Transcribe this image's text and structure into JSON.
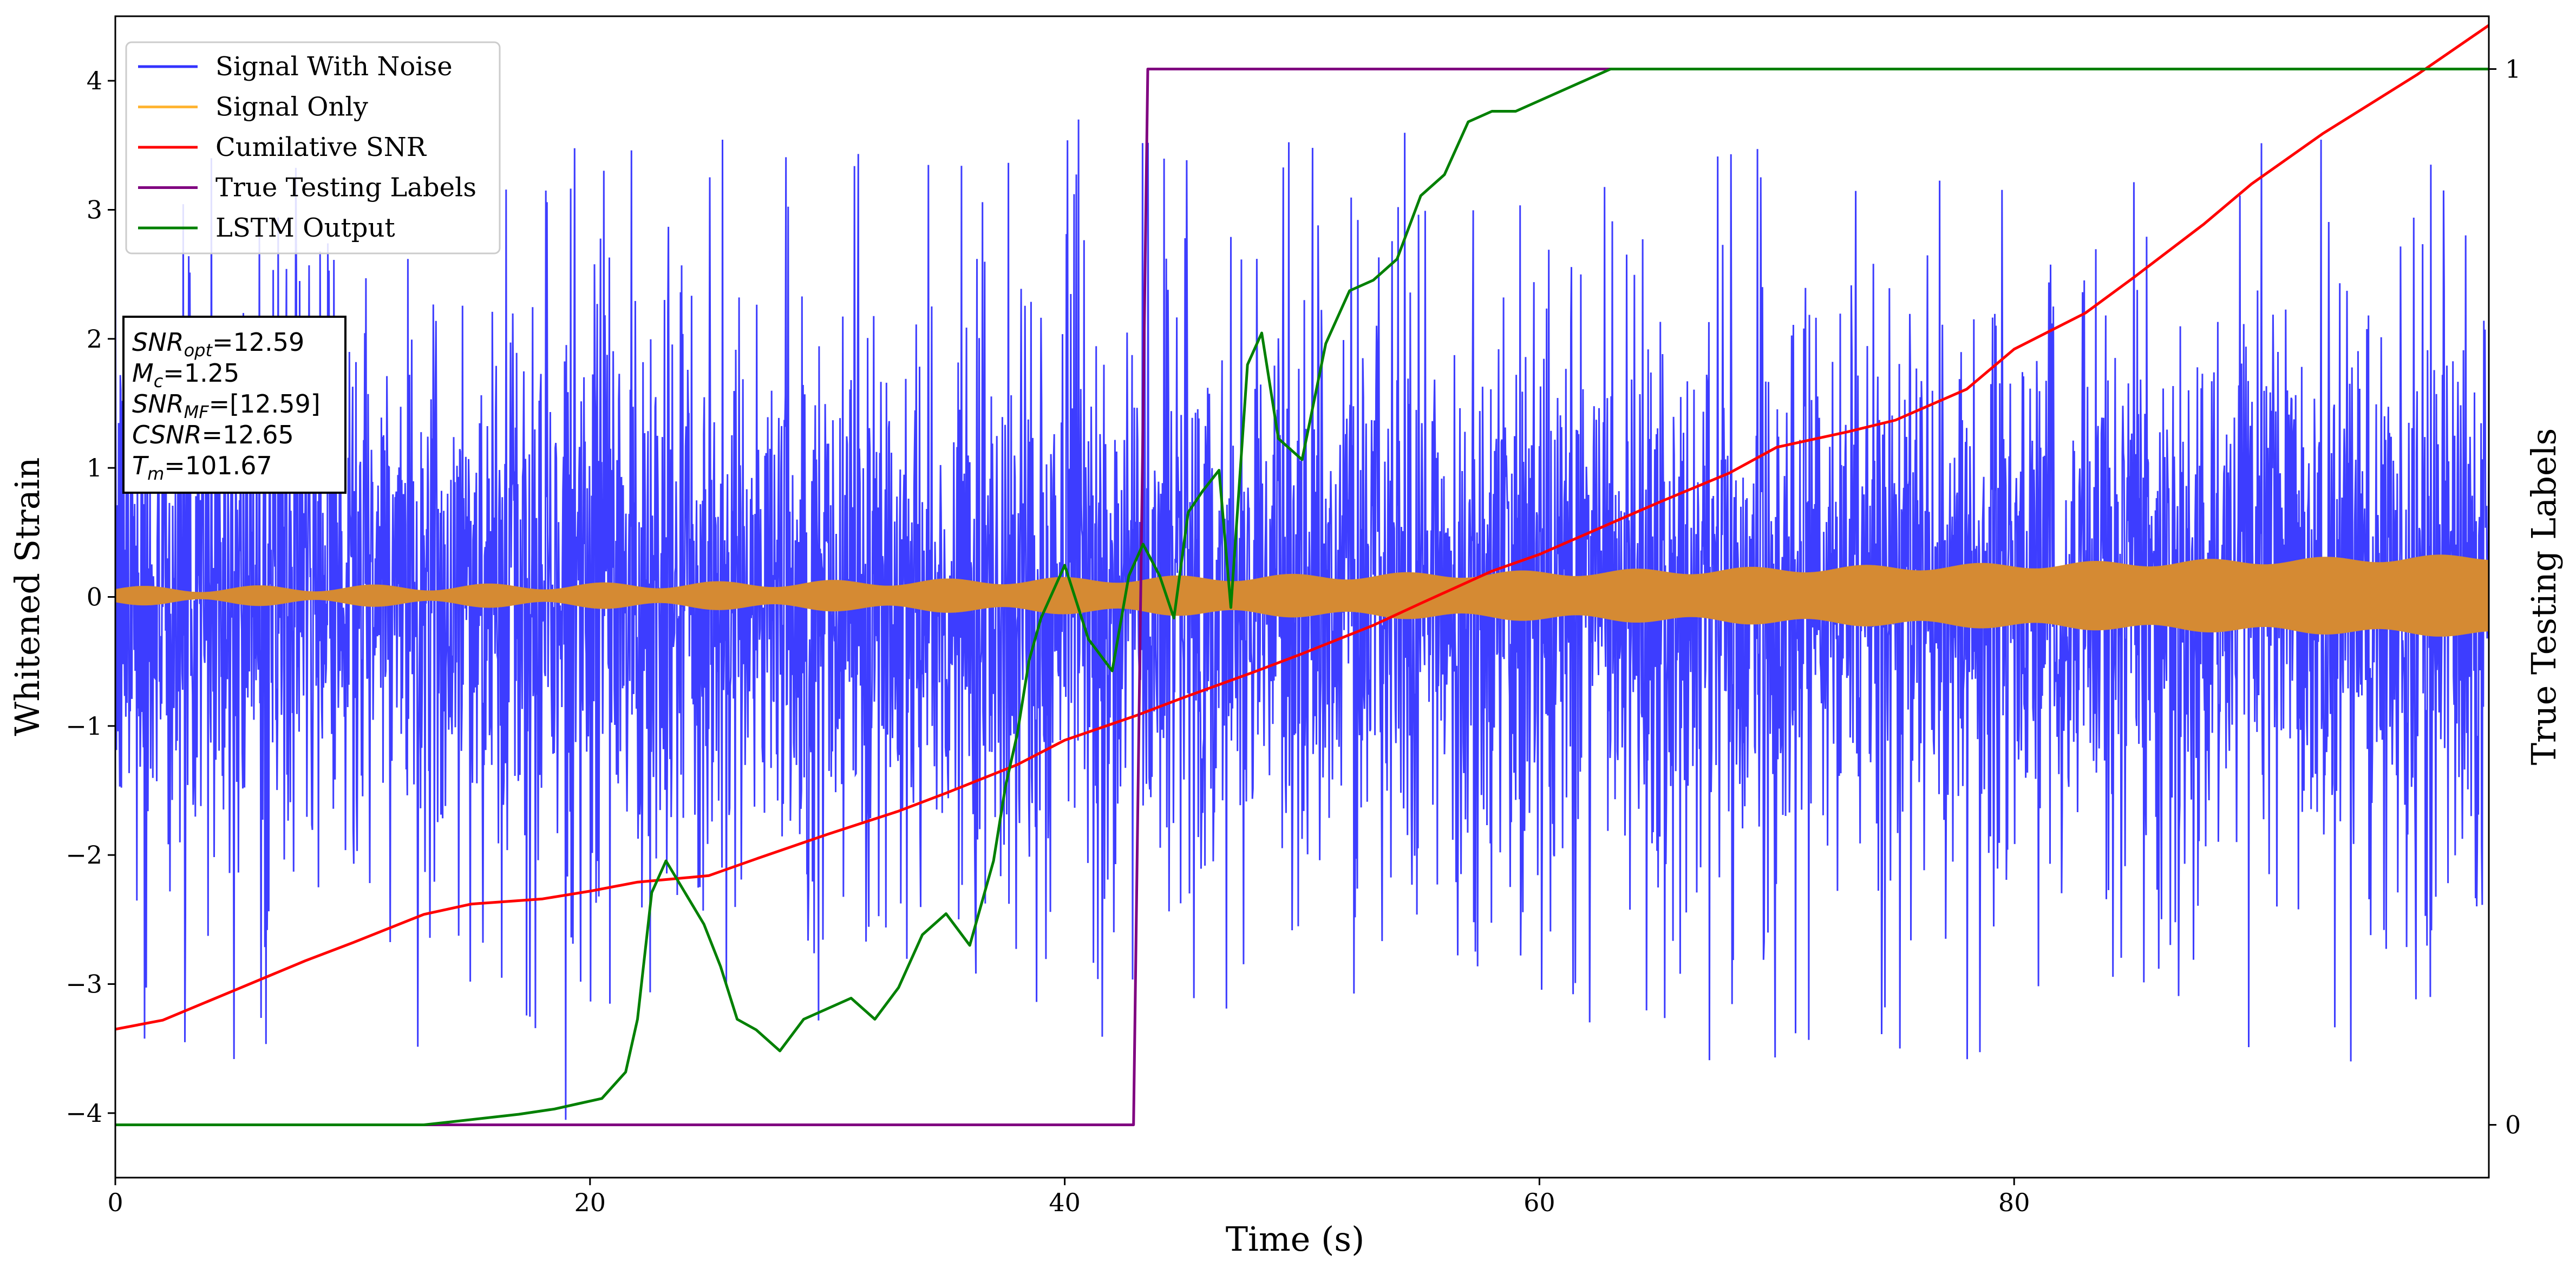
{
  "chart_data": {
    "type": "line",
    "xlabel": "Time (s)",
    "ylabel": "Whitened Strain",
    "ylabel_right": "True Testing Labels",
    "xlim": [
      0,
      100
    ],
    "ylim": [
      -4.5,
      4.5
    ],
    "ylim_right": [
      -0.05,
      1.05
    ],
    "x_ticks": [
      0,
      20,
      40,
      60,
      80
    ],
    "y_ticks": [
      -4,
      -3,
      -2,
      -1,
      0,
      1,
      2,
      3,
      4
    ],
    "y_ticks_right": [
      0,
      1
    ],
    "grid": false,
    "legend_position": "upper-left",
    "series": [
      {
        "name": "Signal With Noise",
        "color": "#3333ff",
        "axis": "left",
        "kind": "noise",
        "amplitude_typical": 1.3,
        "amplitude_max": 3.7
      },
      {
        "name": "Signal Only",
        "color": "#ffb533",
        "axis": "left",
        "kind": "chirp",
        "amplitude_start": 0.05,
        "amplitude_end": 0.3
      },
      {
        "name": "Cumilative SNR",
        "color": "#ff0000",
        "axis": "left",
        "x": [
          0,
          2,
          5,
          8,
          10,
          13,
          15,
          18,
          20,
          22,
          25,
          27,
          30,
          33,
          35,
          38,
          40,
          43,
          45,
          48,
          50,
          53,
          55,
          58,
          60,
          63,
          65,
          68,
          70,
          73,
          75,
          78,
          80,
          83,
          85,
          88,
          90,
          93,
          95,
          97,
          100
        ],
        "y": [
          -3.35,
          -3.28,
          -3.05,
          -2.82,
          -2.68,
          -2.46,
          -2.38,
          -2.34,
          -2.28,
          -2.21,
          -2.16,
          -2.03,
          -1.84,
          -1.66,
          -1.52,
          -1.3,
          -1.11,
          -0.92,
          -0.78,
          -0.58,
          -0.44,
          -0.22,
          -0.05,
          0.2,
          0.33,
          0.57,
          0.73,
          0.96,
          1.16,
          1.28,
          1.37,
          1.61,
          1.92,
          2.2,
          2.47,
          2.89,
          3.2,
          3.59,
          3.82,
          4.05,
          4.43
        ]
      },
      {
        "name": "True Testing Labels",
        "color": "#800080",
        "axis": "right",
        "x": [
          0,
          42.9,
          43.5,
          100
        ],
        "y": [
          0,
          0,
          1,
          1
        ]
      },
      {
        "name": "LSTM Output",
        "color": "#008000",
        "axis": "right",
        "x": [
          0,
          13,
          15,
          17,
          18.5,
          19.5,
          20.5,
          21.5,
          22,
          22.6,
          23.2,
          24,
          24.8,
          25.5,
          26.2,
          27,
          28,
          29,
          30,
          31,
          32,
          33,
          34,
          35,
          36,
          37,
          37.5,
          38,
          38.5,
          39,
          40,
          41,
          42,
          42.7,
          43.3,
          44,
          44.6,
          45.2,
          45.8,
          46.5,
          47,
          47.7,
          48.3,
          49,
          50,
          51,
          52,
          53,
          54,
          55,
          56,
          57,
          58,
          59,
          60,
          61,
          62,
          63,
          65,
          67,
          70,
          100
        ],
        "y": [
          0,
          0,
          0.005,
          0.01,
          0.015,
          0.02,
          0.025,
          0.05,
          0.1,
          0.22,
          0.25,
          0.22,
          0.19,
          0.15,
          0.1,
          0.09,
          0.07,
          0.1,
          0.11,
          0.12,
          0.1,
          0.13,
          0.18,
          0.2,
          0.17,
          0.25,
          0.32,
          0.37,
          0.44,
          0.48,
          0.53,
          0.46,
          0.43,
          0.52,
          0.55,
          0.52,
          0.48,
          0.58,
          0.6,
          0.62,
          0.49,
          0.72,
          0.75,
          0.65,
          0.63,
          0.74,
          0.79,
          0.8,
          0.82,
          0.88,
          0.9,
          0.95,
          0.96,
          0.96,
          0.97,
          0.98,
          0.99,
          1,
          1,
          1,
          1,
          1
        ]
      }
    ],
    "annotation": {
      "lines": [
        {
          "base": "SNR",
          "sub": "opt",
          "value": "=12.59"
        },
        {
          "base": "M",
          "sub": "c",
          "value": "=1.25"
        },
        {
          "base": "SNR",
          "sub": "MF",
          "value": "=[12.59]"
        },
        {
          "base": "CSNR",
          "sub": "",
          "value": "=12.65"
        },
        {
          "base": "T",
          "sub": "m",
          "value": "=101.67"
        }
      ]
    }
  }
}
